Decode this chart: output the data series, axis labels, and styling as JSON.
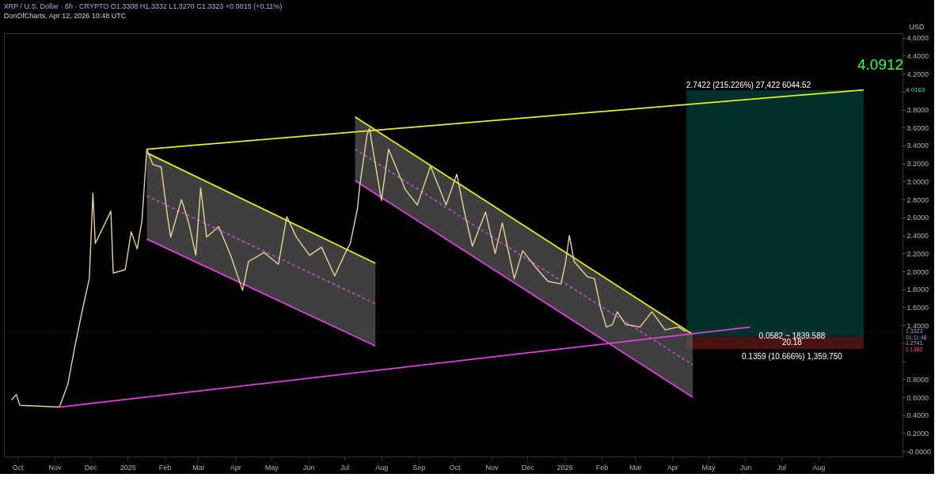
{
  "chart_data": {
    "type": "line",
    "title": "XRP / U.S. Dollar · 6h · CRYPTO  O1.3308  H1.3332  L1.3270  C1.3323  +0.0015 (+0.11%)",
    "subtitle": "DonOfCharts, Apr 12, 2026 10:48 UTC",
    "ylabel": "USD",
    "xlim": [
      "2024-09-23",
      "2026-10-07"
    ],
    "xticks": [
      {
        "value": "2024-10-01",
        "label": "Oct"
      },
      {
        "value": "2024-11-01",
        "label": "Nov"
      },
      {
        "value": "2024-12-01",
        "label": "Dec"
      },
      {
        "value": "2025-01-01",
        "label": "2025"
      },
      {
        "value": "2025-02-01",
        "label": "Feb"
      },
      {
        "value": "2025-03-01",
        "label": "Mar"
      },
      {
        "value": "2025-04-01",
        "label": "Apr"
      },
      {
        "value": "2025-05-01",
        "label": "May"
      },
      {
        "value": "2025-06-01",
        "label": "Jun"
      },
      {
        "value": "2025-07-01",
        "label": "Jul"
      },
      {
        "value": "2025-08-01",
        "label": "Aug"
      },
      {
        "value": "2025-09-01",
        "label": "Sep"
      },
      {
        "value": "2025-10-01",
        "label": "Oct"
      },
      {
        "value": "2025-11-01",
        "label": "Nov"
      },
      {
        "value": "2025-12-01",
        "label": "Dec"
      },
      {
        "value": "2026-01-01",
        "label": "2026"
      },
      {
        "value": "2026-02-01",
        "label": "Feb"
      },
      {
        "value": "2026-03-01",
        "label": "Mar"
      },
      {
        "value": "2026-04-01",
        "label": "Apr"
      },
      {
        "value": "2026-05-01",
        "label": "May"
      },
      {
        "value": "2026-06-01",
        "label": "Jun"
      },
      {
        "value": "2026-07-01",
        "label": "Jul"
      },
      {
        "value": "2026-08-01",
        "label": "Aug"
      }
    ],
    "ylim": [
      -0.06,
      4.65
    ],
    "yticks": [
      {
        "value": 0,
        "label": "-0.0000"
      },
      {
        "value": 0.2,
        "label": "0.2000"
      },
      {
        "value": 0.4,
        "label": "0.4000"
      },
      {
        "value": 0.6,
        "label": "0.6000"
      },
      {
        "value": 0.8,
        "label": "0.8000"
      },
      {
        "value": 1.0,
        "label": null
      },
      {
        "value": 1.2,
        "label": null
      },
      {
        "value": 1.4,
        "label": "1.4000"
      },
      {
        "value": 1.6,
        "label": "1.6000"
      },
      {
        "value": 1.8,
        "label": "1.8000"
      },
      {
        "value": 2.0,
        "label": "2.0000"
      },
      {
        "value": 2.2,
        "label": "2.2000"
      },
      {
        "value": 2.4,
        "label": "2.4000"
      },
      {
        "value": 2.6,
        "label": "2.6000"
      },
      {
        "value": 2.8,
        "label": "2.8000"
      },
      {
        "value": 3.0,
        "label": "3.0000"
      },
      {
        "value": 3.2,
        "label": "3.2000"
      },
      {
        "value": 3.4,
        "label": "3.4000"
      },
      {
        "value": 3.6,
        "label": "3.6000"
      },
      {
        "value": 3.8,
        "label": "3.8000"
      },
      {
        "value": 4.0,
        "label": null
      },
      {
        "value": 4.2,
        "label": "4.2000"
      },
      {
        "value": 4.4,
        "label": "4.4000"
      },
      {
        "value": 4.6,
        "label": "4.6000"
      }
    ],
    "series": [
      {
        "type": "bar",
        "color": "#00302a",
        "x": [
          "2026-06-26"
        ],
        "base": [
          1.2741
        ],
        "values": [
          2.7422
        ]
      },
      {
        "type": "bar",
        "color": "#4a1212",
        "x": [
          "2026-06-26"
        ],
        "base": [
          1.1382
        ],
        "values": [
          0.1359
        ]
      },
      {
        "line_style": "dashed",
        "color": "#b050b0",
        "x": [
          "2025-01-17",
          "2025-07-27"
        ],
        "values": [
          2.84,
          1.64
        ],
        "lower": [
          2.36,
          1.17
        ],
        "upper": [
          3.32,
          2.09
        ]
      },
      {
        "line_style": "dashed",
        "color": "#b050b0",
        "x": [
          "2025-07-10",
          "2026-04-18"
        ],
        "values": [
          3.36,
          0.96
        ],
        "lower": [
          3.01,
          0.6
        ],
        "upper": [
          3.72,
          1.3
        ]
      },
      {
        "type": "line",
        "color": "#e6f020",
        "x": [
          "2025-01-17",
          "2025-07-27"
        ],
        "values": [
          3.32,
          2.09
        ]
      },
      {
        "type": "line",
        "color": "#e040e0",
        "x": [
          "2025-01-17",
          "2025-07-27"
        ],
        "values": [
          2.36,
          1.17
        ]
      },
      {
        "type": "line",
        "color": "#e6f020",
        "x": [
          "2025-07-10",
          "2026-04-18"
        ],
        "values": [
          3.72,
          1.3
        ]
      },
      {
        "type": "line",
        "color": "#e040e0",
        "x": [
          "2025-07-10",
          "2026-04-18"
        ],
        "values": [
          3.01,
          0.6
        ]
      },
      {
        "color": "#e6d49a",
        "x": [
          "2024-09-26",
          "2024-09-30",
          "2024-10-03",
          "2024-11-05",
          "2024-11-12",
          "2024-11-18",
          "2024-11-24",
          "2024-11-30",
          "2024-12-03",
          "2024-12-05",
          "2024-12-18",
          "2024-12-20",
          "2024-12-30",
          "2025-01-04",
          "2025-01-09",
          "2025-01-13",
          "2025-01-17",
          "2025-01-22",
          "2025-01-29",
          "2025-02-03",
          "2025-02-06",
          "2025-02-15",
          "2025-02-21",
          "2025-02-27",
          "2025-03-03",
          "2025-03-08",
          "2025-03-18",
          "2025-03-28",
          "2025-04-07",
          "2025-04-12",
          "2025-04-25",
          "2025-05-07",
          "2025-05-14",
          "2025-05-22",
          "2025-06-02",
          "2025-06-12",
          "2025-06-23",
          "2025-07-02",
          "2025-07-06",
          "2025-07-12",
          "2025-07-14",
          "2025-07-20",
          "2025-07-22",
          "2025-08-01",
          "2025-08-07",
          "2025-08-21",
          "2025-08-31",
          "2025-09-11",
          "2025-09-24",
          "2025-10-03",
          "2025-10-09",
          "2025-10-16",
          "2025-10-27",
          "2025-11-04",
          "2025-11-10",
          "2025-11-20",
          "2025-11-27",
          "2025-12-07",
          "2025-12-18",
          "2025-12-29",
          "2026-01-02",
          "2026-01-05",
          "2026-01-09",
          "2026-01-20",
          "2026-01-26",
          "2026-01-31",
          "2026-02-05",
          "2026-02-10",
          "2026-02-14",
          "2026-02-21",
          "2026-03-05",
          "2026-03-15",
          "2026-03-26",
          "2026-04-06",
          "2026-04-12"
        ],
        "values": [
          0.57,
          0.63,
          0.51,
          0.49,
          0.74,
          1.17,
          1.56,
          1.92,
          2.87,
          2.31,
          2.67,
          1.98,
          2.02,
          2.44,
          2.25,
          2.57,
          3.36,
          3.19,
          3.16,
          2.64,
          2.38,
          2.8,
          2.54,
          2.18,
          2.93,
          2.38,
          2.5,
          2.18,
          1.79,
          2.11,
          2.21,
          2.08,
          2.61,
          2.38,
          2.18,
          2.27,
          1.95,
          2.21,
          2.31,
          2.7,
          2.96,
          3.52,
          3.59,
          2.79,
          3.36,
          2.91,
          2.74,
          3.17,
          2.74,
          3.08,
          2.68,
          2.28,
          2.66,
          2.2,
          2.54,
          1.92,
          2.23,
          2.06,
          1.89,
          1.86,
          2.11,
          2.4,
          2.11,
          1.94,
          1.92,
          1.6,
          1.38,
          1.41,
          1.55,
          1.41,
          1.38,
          1.55,
          1.35,
          1.38,
          1.3323
        ]
      },
      {
        "type": "line",
        "color": "#e6f020",
        "x": [
          "2025-01-17",
          "2026-09-08"
        ],
        "values": [
          3.36,
          4.02
        ]
      },
      {
        "type": "line",
        "color": "#e040e0",
        "x": [
          "2024-11-05",
          "2026-06-05"
        ],
        "values": [
          0.49,
          1.38
        ]
      }
    ],
    "ref_lines": [
      {
        "axis": "y",
        "value": 1.3323,
        "color": "#555555"
      }
    ],
    "annotations": [
      {
        "text": "2.7422 (215.226%) 27,422 6044.52",
        "x": "2026-04-14",
        "y": 4.0163
      },
      "4.0912",
      {
        "text": "0.0582 ~ 1839.588",
        "x": "2026-07-10",
        "y": 1.3323
      },
      {
        "text": "20.18",
        "x": "2026-07-10",
        "y": 1.2741
      },
      {
        "text": "0.1359 (10.666%) 1,359.750",
        "x": "2026-07-10",
        "y": 1.1382
      },
      "4.0163",
      "1.3323",
      "01:11:48",
      "1.2741",
      "1.1382"
    ]
  }
}
